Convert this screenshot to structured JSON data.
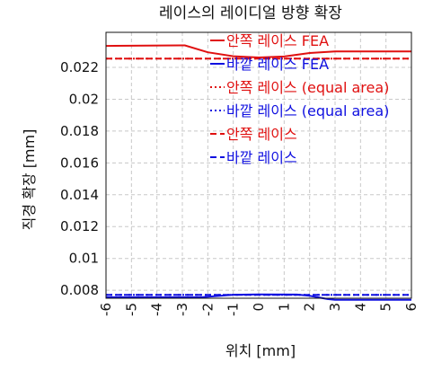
{
  "chart_data": {
    "type": "line",
    "title": "레이스의 레이디얼 방향 확장",
    "xlabel": "위치 [mm]",
    "ylabel": "직경 확장 [mm]",
    "xlim": [
      -6,
      6
    ],
    "ylim": [
      0.0075,
      0.0242
    ],
    "x_ticks": [
      "-6",
      "-5",
      "-4",
      "-3",
      "-2",
      "-1",
      "0",
      "1",
      "2",
      "3",
      "4",
      "5",
      "6"
    ],
    "y_ticks": [
      "0.008",
      "0.01",
      "0.012",
      "0.014",
      "0.016",
      "0.018",
      "0.02",
      "0.022"
    ],
    "grid": true,
    "legend_position": "top-right",
    "colors": {
      "red": "#e01010",
      "blue": "#1010e0"
    },
    "series": [
      {
        "name": "안쪽 레이스 FEA",
        "color": "red",
        "style": "solid",
        "points": [
          [
            -6,
            0.02335
          ],
          [
            -3,
            0.02338
          ],
          [
            -2.9,
            0.02338
          ],
          [
            -2,
            0.02295
          ],
          [
            -1,
            0.0227
          ],
          [
            0,
            0.02262
          ],
          [
            1,
            0.02268
          ],
          [
            2,
            0.0229
          ],
          [
            3,
            0.023
          ],
          [
            6,
            0.023
          ]
        ]
      },
      {
        "name": "바깥 레이스 FEA",
        "color": "blue",
        "style": "solid",
        "points": [
          [
            -6,
            0.00756
          ],
          [
            -3,
            0.00756
          ],
          [
            -2.2,
            0.00757
          ],
          [
            -1.5,
            0.00765
          ],
          [
            -1,
            0.00772
          ],
          [
            0,
            0.00774
          ],
          [
            1.5,
            0.00773
          ],
          [
            2,
            0.00765
          ],
          [
            2.7,
            0.00745
          ],
          [
            3,
            0.0074
          ],
          [
            6,
            0.0074
          ]
        ]
      },
      {
        "name": "안쪽 레이스 (equal area)",
        "color": "red",
        "style": "dotted",
        "points": [
          [
            -6,
            0.02255
          ],
          [
            6,
            0.02255
          ]
        ]
      },
      {
        "name": "바깥 레이스 (equal area)",
        "color": "blue",
        "style": "dotted",
        "points": [
          [
            -6,
            0.00771
          ],
          [
            6,
            0.00771
          ]
        ]
      },
      {
        "name": "안쪽 레이스",
        "color": "red",
        "style": "dashed",
        "points": [
          [
            -6,
            0.02255
          ],
          [
            6,
            0.02255
          ]
        ]
      },
      {
        "name": "바깥 레이스",
        "color": "blue",
        "style": "dashed",
        "points": [
          [
            -6,
            0.00771
          ],
          [
            6,
            0.00771
          ]
        ]
      }
    ]
  }
}
